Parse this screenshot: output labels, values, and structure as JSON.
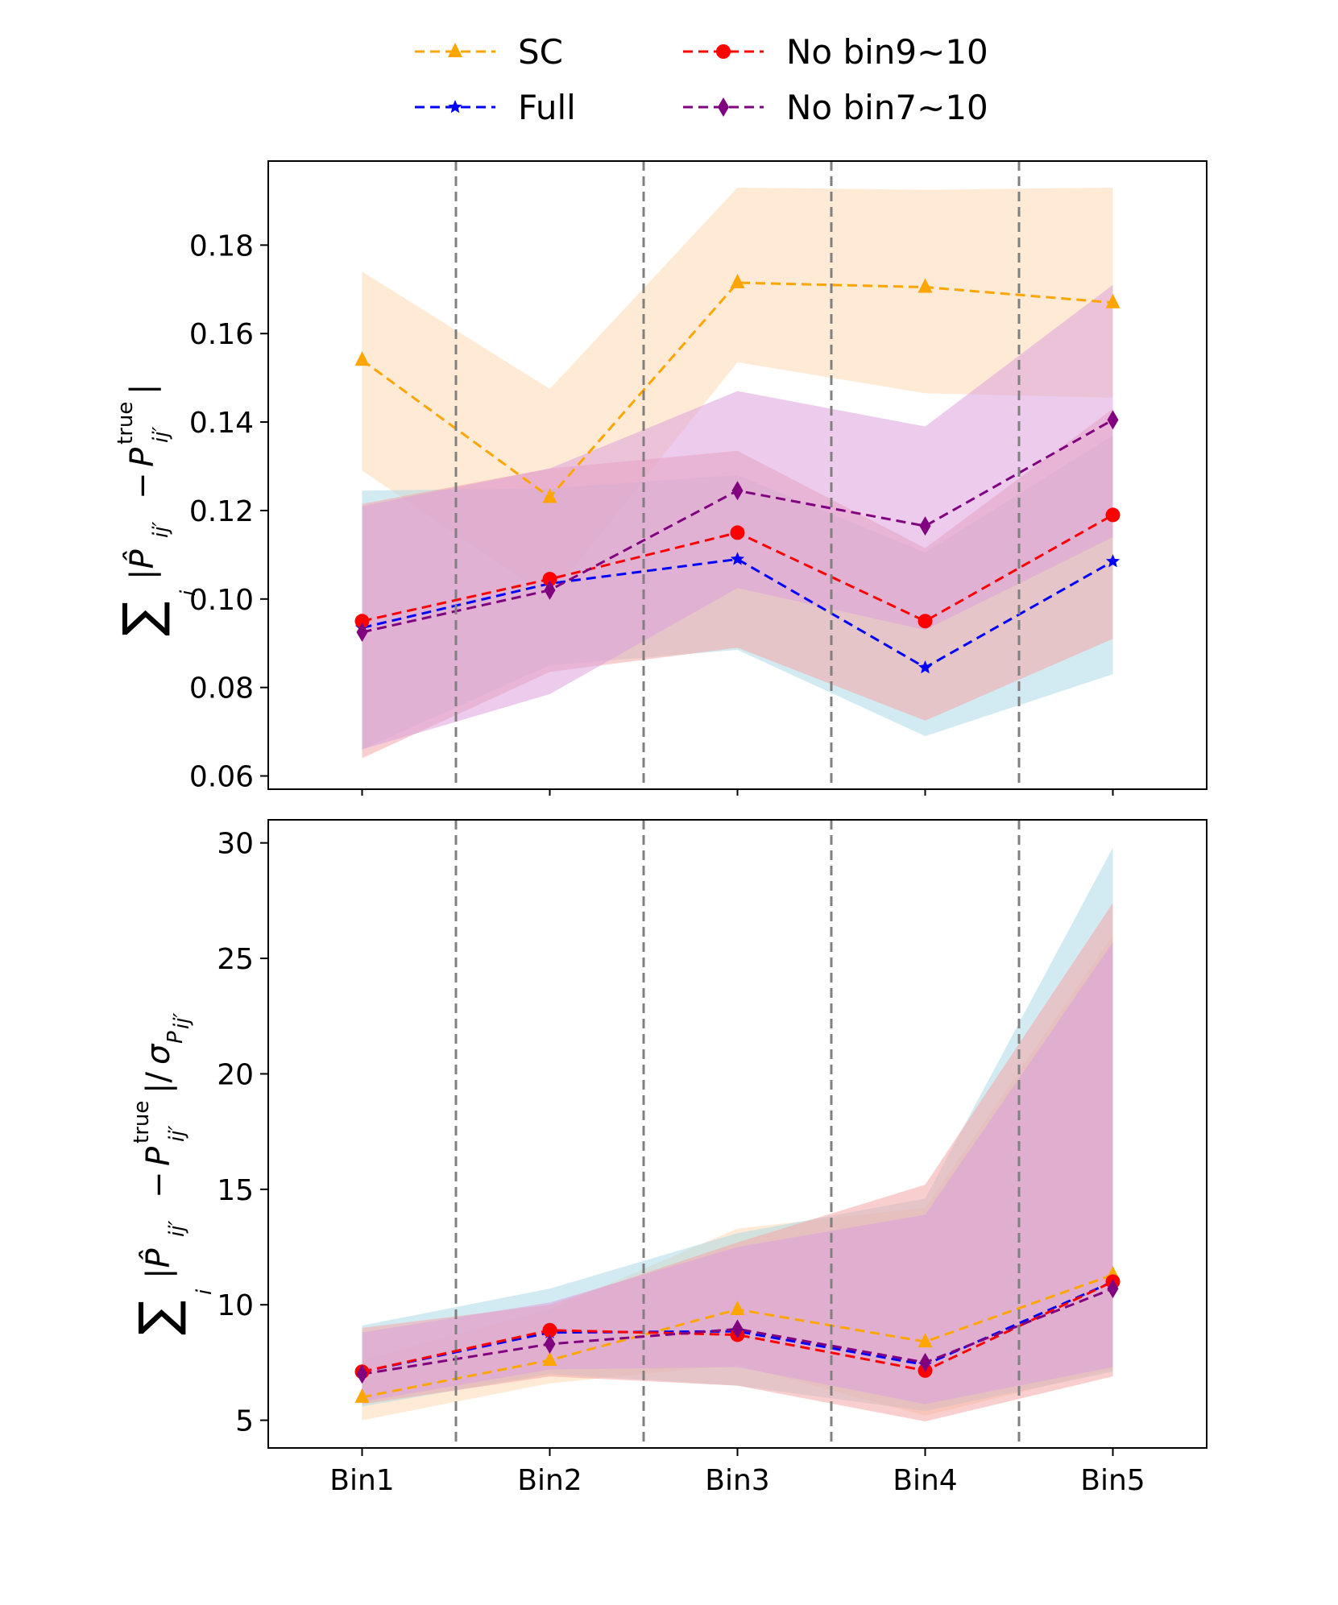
{
  "chart_data": [
    {
      "type": "line",
      "panel": "top",
      "categories": [
        "Bin1",
        "Bin2",
        "Bin3",
        "Bin4",
        "Bin5"
      ],
      "ylabel": "Σ_i |P̂_ij′ − P^true_ij′|",
      "ylim": [
        0.057,
        0.199
      ],
      "yticks": [
        "0.06",
        "0.08",
        "0.10",
        "0.12",
        "0.14",
        "0.16",
        "0.18"
      ],
      "ytick_values": [
        0.06,
        0.08,
        0.1,
        0.12,
        0.14,
        0.16,
        0.18
      ],
      "series": [
        {
          "name": "SC",
          "color": "#FFA500",
          "band_color": "#FFD9B3",
          "marker": "triangle",
          "values": [
            0.154,
            0.123,
            0.1715,
            0.1705,
            0.167
          ],
          "upper": [
            0.174,
            0.1475,
            0.193,
            0.1925,
            0.193
          ],
          "lower": [
            0.129,
            0.1005,
            0.1535,
            0.1465,
            0.1455
          ]
        },
        {
          "name": "Full",
          "color": "#0000FF",
          "band_color": "#ADD8E6",
          "marker": "star",
          "values": [
            0.0935,
            0.1035,
            0.109,
            0.0845,
            0.1085
          ],
          "upper": [
            0.1245,
            0.125,
            0.128,
            0.1105,
            0.137
          ],
          "lower": [
            0.066,
            0.085,
            0.0885,
            0.069,
            0.083
          ]
        },
        {
          "name": "No bin9~10",
          "color": "#FF0000",
          "band_color": "#F4A5A5",
          "marker": "circle",
          "values": [
            0.095,
            0.1045,
            0.115,
            0.095,
            0.119
          ],
          "upper": [
            0.1215,
            0.1295,
            0.1335,
            0.1115,
            0.143
          ],
          "lower": [
            0.064,
            0.0835,
            0.089,
            0.0725,
            0.091
          ]
        },
        {
          "name": "No bin7~10",
          "color": "#800080",
          "band_color": "#DDA0DD",
          "marker": "diamond",
          "values": [
            0.0925,
            0.102,
            0.1245,
            0.1165,
            0.1405
          ],
          "upper": [
            0.121,
            0.1295,
            0.147,
            0.139,
            0.171
          ],
          "lower": [
            0.066,
            0.0785,
            0.1025,
            0.093,
            0.114
          ]
        }
      ]
    },
    {
      "type": "line",
      "panel": "bottom",
      "categories": [
        "Bin1",
        "Bin2",
        "Bin3",
        "Bin4",
        "Bin5"
      ],
      "ylabel": "Σ_i |P̂_ij′ − P^true_ij′| / σ_Pij′",
      "ylim": [
        3.8,
        31.0
      ],
      "yticks": [
        "5",
        "10",
        "15",
        "20",
        "25",
        "30"
      ],
      "ytick_values": [
        5,
        10,
        15,
        20,
        25,
        30
      ],
      "series": [
        {
          "name": "SC",
          "color": "#FFA500",
          "band_color": "#FFD9B3",
          "marker": "triangle",
          "values": [
            6.0,
            7.6,
            9.8,
            8.4,
            11.3
          ],
          "upper": [
            7.6,
            9.8,
            13.3,
            14.2,
            26.0
          ],
          "lower": [
            5.0,
            6.6,
            7.4,
            5.2,
            7.2
          ]
        },
        {
          "name": "Full",
          "color": "#0000FF",
          "band_color": "#ADD8E6",
          "marker": "star",
          "values": [
            7.1,
            8.8,
            8.85,
            7.4,
            11.0
          ],
          "upper": [
            9.1,
            10.7,
            13.1,
            14.6,
            29.8
          ],
          "lower": [
            5.6,
            7.0,
            6.5,
            5.4,
            7.1
          ]
        },
        {
          "name": "No bin9~10",
          "color": "#FF0000",
          "band_color": "#F4A5A5",
          "marker": "circle",
          "values": [
            7.1,
            8.9,
            8.7,
            7.15,
            11.0
          ],
          "upper": [
            9.0,
            10.0,
            12.7,
            15.2,
            27.4
          ],
          "lower": [
            5.7,
            6.9,
            6.5,
            4.95,
            6.9
          ]
        },
        {
          "name": "No bin7~10",
          "color": "#800080",
          "band_color": "#DDA0DD",
          "marker": "diamond",
          "values": [
            7.0,
            8.3,
            8.95,
            7.5,
            10.7
          ],
          "upper": [
            8.8,
            10.1,
            12.5,
            13.9,
            25.7
          ],
          "lower": [
            5.8,
            7.2,
            7.3,
            5.7,
            7.3
          ]
        }
      ]
    }
  ],
  "legend": {
    "placement": "top-center",
    "items": [
      "SC",
      "No bin9~10",
      "Full",
      "No bin7~10"
    ]
  },
  "dividers": {
    "style": "dashed",
    "color": "#808080",
    "count": 4
  }
}
